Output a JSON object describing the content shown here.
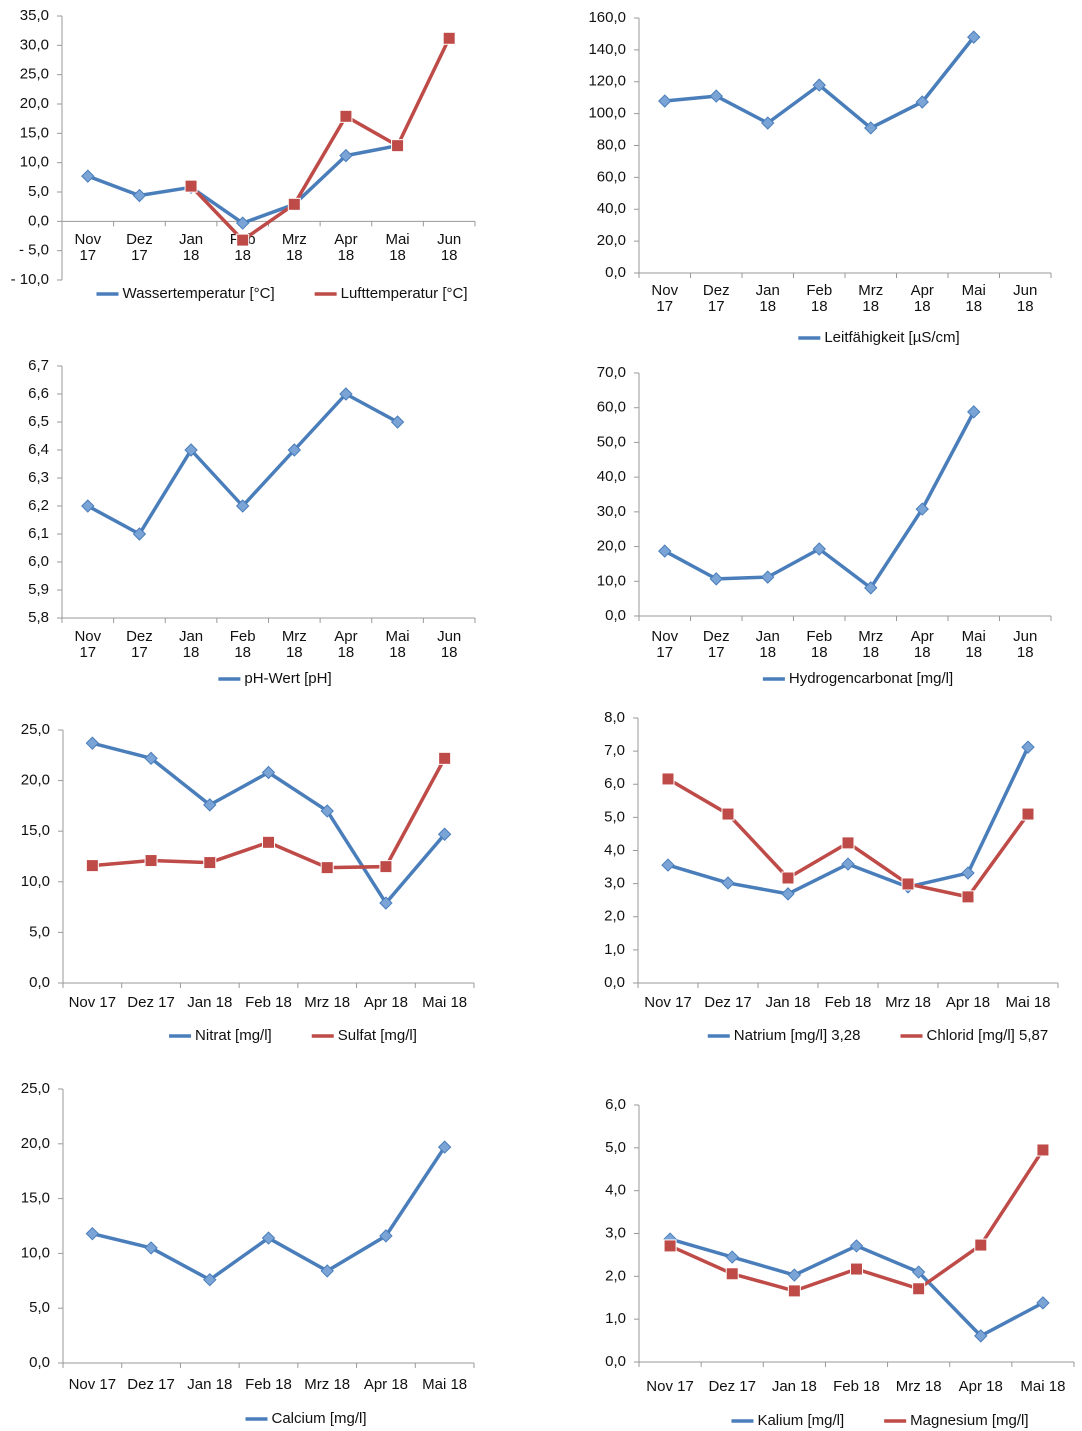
{
  "chart_data": [
    {
      "type": "line",
      "categories": [
        "Nov 17",
        "Dez 17",
        "Jan 18",
        "Feb 18",
        "Mrz 18",
        "Apr 18",
        "Mai 18",
        "Jun 18"
      ],
      "series": [
        {
          "name": "Wassertemperatur [°C]",
          "color": "#4a7ebb",
          "marker": "diamond",
          "values": [
            7.7,
            4.4,
            5.8,
            -0.3,
            2.9,
            11.2,
            12.9,
            null
          ]
        },
        {
          "name": "Lufttemperatur [°C]",
          "color": "#be4b48",
          "marker": "square",
          "values": [
            null,
            null,
            6.0,
            -3.2,
            2.9,
            17.9,
            12.9,
            31.2
          ]
        }
      ],
      "ylim": [
        -10,
        35
      ],
      "yticks": [
        {
          "value": -10,
          "label": "- 10,0"
        },
        {
          "value": -5,
          "label": "- 5,0"
        },
        {
          "value": 0,
          "label": "0,0"
        },
        {
          "value": 5,
          "label": "5,0"
        },
        {
          "value": 10,
          "label": "10,0"
        },
        {
          "value": 15,
          "label": "15,0"
        },
        {
          "value": 20,
          "label": "20,0"
        },
        {
          "value": 25,
          "label": "25,0"
        },
        {
          "value": 30,
          "label": "30,0"
        },
        {
          "value": 35,
          "label": "35,0"
        }
      ],
      "legend": "bottom"
    },
    {
      "type": "line",
      "categories": [
        "Nov 17",
        "Dez 17",
        "Jan 18",
        "Feb 18",
        "Mrz 18",
        "Apr 18",
        "Mai 18",
        "Jun 18"
      ],
      "series": [
        {
          "name": "Leitfähigkeit [µS/cm]",
          "color": "#4a7ebb",
          "marker": "diamond",
          "values": [
            107.9,
            111,
            94.1,
            117.9,
            91,
            107.3,
            148,
            null
          ]
        }
      ],
      "ylim": [
        0,
        160
      ],
      "yticks": [
        {
          "value": 0,
          "label": "0,0"
        },
        {
          "value": 20,
          "label": "20,0"
        },
        {
          "value": 40,
          "label": "40,0"
        },
        {
          "value": 60,
          "label": "60,0"
        },
        {
          "value": 80,
          "label": "80,0"
        },
        {
          "value": 100,
          "label": "100,0"
        },
        {
          "value": 120,
          "label": "120,0"
        },
        {
          "value": 140,
          "label": "140,0"
        },
        {
          "value": 160,
          "label": "160,0"
        }
      ],
      "legend": "bottom"
    },
    {
      "type": "line",
      "categories": [
        "Nov 17",
        "Dez 17",
        "Jan 18",
        "Feb 18",
        "Mrz 18",
        "Apr 18",
        "Mai 18",
        "Jun 18"
      ],
      "series": [
        {
          "name": "pH-Wert [pH]",
          "color": "#4a7ebb",
          "marker": "diamond",
          "values": [
            6.2,
            6.1,
            6.4,
            6.2,
            6.4,
            6.6,
            6.5,
            null
          ]
        }
      ],
      "ylim": [
        5.8,
        6.7
      ],
      "yticks": [
        {
          "value": 5.8,
          "label": "5,8"
        },
        {
          "value": 5.9,
          "label": "5,9"
        },
        {
          "value": 6.0,
          "label": "6,0"
        },
        {
          "value": 6.1,
          "label": "6,1"
        },
        {
          "value": 6.2,
          "label": "6,2"
        },
        {
          "value": 6.3,
          "label": "6,3"
        },
        {
          "value": 6.4,
          "label": "6,4"
        },
        {
          "value": 6.5,
          "label": "6,5"
        },
        {
          "value": 6.6,
          "label": "6,6"
        },
        {
          "value": 6.7,
          "label": "6,7"
        }
      ],
      "legend": "bottom"
    },
    {
      "type": "line",
      "categories": [
        "Nov 17",
        "Dez 17",
        "Jan 18",
        "Feb 18",
        "Mrz 18",
        "Apr 18",
        "Mai 18",
        "Jun 18"
      ],
      "series": [
        {
          "name": "Hydrogencarbonat [mg/l]",
          "color": "#4a7ebb",
          "marker": "diamond",
          "values": [
            18.7,
            10.7,
            11.2,
            19.3,
            8.1,
            30.8,
            58.8,
            null
          ]
        }
      ],
      "ylim": [
        0,
        70
      ],
      "yticks": [
        {
          "value": 0,
          "label": "0,0"
        },
        {
          "value": 10,
          "label": "10,0"
        },
        {
          "value": 20,
          "label": "20,0"
        },
        {
          "value": 30,
          "label": "30,0"
        },
        {
          "value": 40,
          "label": "40,0"
        },
        {
          "value": 50,
          "label": "50,0"
        },
        {
          "value": 60,
          "label": "60,0"
        },
        {
          "value": 70,
          "label": "70,0"
        }
      ],
      "legend": "bottom"
    },
    {
      "type": "line",
      "categories": [
        "Nov 17",
        "Dez 17",
        "Jan 18",
        "Feb 18",
        "Mrz 18",
        "Apr 18",
        "Mai 18"
      ],
      "series": [
        {
          "name": "Nitrat [mg/l]",
          "color": "#4a7ebb",
          "marker": "diamond",
          "values": [
            23.7,
            22.2,
            17.6,
            20.8,
            17.0,
            7.9,
            14.7
          ]
        },
        {
          "name": "Sulfat [mg/l]",
          "color": "#be4b48",
          "marker": "square",
          "values": [
            11.6,
            12.1,
            11.9,
            13.9,
            11.4,
            11.5,
            22.2
          ]
        }
      ],
      "ylim": [
        0,
        25
      ],
      "yticks": [
        {
          "value": 0,
          "label": "0,0"
        },
        {
          "value": 5,
          "label": "5,0"
        },
        {
          "value": 10,
          "label": "10,0"
        },
        {
          "value": 15,
          "label": "15,0"
        },
        {
          "value": 20,
          "label": "20,0"
        },
        {
          "value": 25,
          "label": "25,0"
        }
      ],
      "legend": "bottom"
    },
    {
      "type": "line",
      "categories": [
        "Nov 17",
        "Dez 17",
        "Jan 18",
        "Feb 18",
        "Mrz 18",
        "Apr 18",
        "Mai 18"
      ],
      "series": [
        {
          "name": "Natrium [mg/l] 3,28",
          "color": "#4a7ebb",
          "marker": "diamond",
          "values": [
            3.56,
            3.02,
            2.69,
            3.59,
            2.9,
            3.32,
            7.12
          ]
        },
        {
          "name": "Chlorid [mg/l] 5,87",
          "color": "#be4b48",
          "marker": "square",
          "values": [
            6.16,
            5.1,
            3.17,
            4.23,
            2.99,
            2.6,
            5.1
          ]
        }
      ],
      "ylim": [
        0,
        8
      ],
      "yticks": [
        {
          "value": 0,
          "label": "0,0"
        },
        {
          "value": 1,
          "label": "1,0"
        },
        {
          "value": 2,
          "label": "2,0"
        },
        {
          "value": 3,
          "label": "3,0"
        },
        {
          "value": 4,
          "label": "4,0"
        },
        {
          "value": 5,
          "label": "5,0"
        },
        {
          "value": 6,
          "label": "6,0"
        },
        {
          "value": 7,
          "label": "7,0"
        },
        {
          "value": 8,
          "label": "8,0"
        }
      ],
      "legend": "bottom"
    },
    {
      "type": "line",
      "categories": [
        "Nov 17",
        "Dez 17",
        "Jan 18",
        "Feb 18",
        "Mrz 18",
        "Apr 18",
        "Mai 18"
      ],
      "series": [
        {
          "name": "Calcium [mg/l]",
          "color": "#4a7ebb",
          "marker": "diamond",
          "values": [
            11.8,
            10.5,
            7.6,
            11.4,
            8.4,
            11.6,
            19.7
          ]
        }
      ],
      "ylim": [
        0,
        25
      ],
      "yticks": [
        {
          "value": 0,
          "label": "0,0"
        },
        {
          "value": 5,
          "label": "5,0"
        },
        {
          "value": 10,
          "label": "10,0"
        },
        {
          "value": 15,
          "label": "15,0"
        },
        {
          "value": 20,
          "label": "20,0"
        },
        {
          "value": 25,
          "label": "25,0"
        }
      ],
      "legend": "bottom"
    },
    {
      "type": "line",
      "categories": [
        "Nov 17",
        "Dez 17",
        "Jan 18",
        "Feb 18",
        "Mrz 18",
        "Apr 18",
        "Mai 18"
      ],
      "series": [
        {
          "name": "Kalium [mg/l]",
          "color": "#4a7ebb",
          "marker": "diamond",
          "values": [
            2.87,
            2.45,
            2.03,
            2.71,
            2.1,
            0.61,
            1.38
          ]
        },
        {
          "name": "Magnesium [mg/l]",
          "color": "#be4b48",
          "marker": "square",
          "values": [
            2.71,
            2.06,
            1.66,
            2.17,
            1.71,
            2.73,
            4.95
          ]
        }
      ],
      "ylim": [
        0,
        6
      ],
      "yticks": [
        {
          "value": 0,
          "label": "0,0"
        },
        {
          "value": 1,
          "label": "1,0"
        },
        {
          "value": 2,
          "label": "2,0"
        },
        {
          "value": 3,
          "label": "3,0"
        },
        {
          "value": 4,
          "label": "4,0"
        },
        {
          "value": 5,
          "label": "5,0"
        },
        {
          "value": 6,
          "label": "6,0"
        }
      ],
      "legend": "bottom"
    }
  ]
}
